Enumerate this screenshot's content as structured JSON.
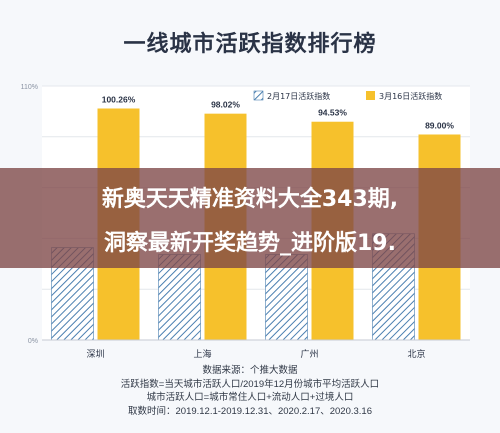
{
  "page": {
    "title": "一线城市活跃指数排行榜",
    "overlay_line_1": "新奥天天精准资料大全343期,",
    "overlay_line_2": "洞察最新开奖趋势_进阶版19.",
    "notes": [
      "数据来源：个推大数据",
      "活跃指数=当天城市活跃人口/2019年12月份城市平均活跃人口",
      "城市活跃人口=城市常住人口+流动人口+过境人口",
      "取数时间：2019.12.1-2019.12.31、2020.2.17、2020.3.16"
    ],
    "watermark": "据"
  },
  "chart_data": {
    "type": "bar",
    "categories": [
      "深圳",
      "上海",
      "广州",
      "北京"
    ],
    "series": [
      {
        "name": "2月17日活跃指数",
        "values": [
          40,
          37,
          37,
          46
        ],
        "color": "#4a7fb0",
        "pattern": "hatch"
      },
      {
        "name": "3月16日活跃指数",
        "values": [
          100.26,
          98.02,
          94.53,
          89.0
        ],
        "color": "#f6c12c",
        "pattern": "solid"
      }
    ],
    "data_labels": [
      "100.26%",
      "98.02%",
      "94.53%",
      "89.00%"
    ],
    "ytick_labels": [
      "110%",
      "0%"
    ],
    "ylim": [
      0,
      110
    ],
    "grid": true,
    "legend": "top-right"
  }
}
